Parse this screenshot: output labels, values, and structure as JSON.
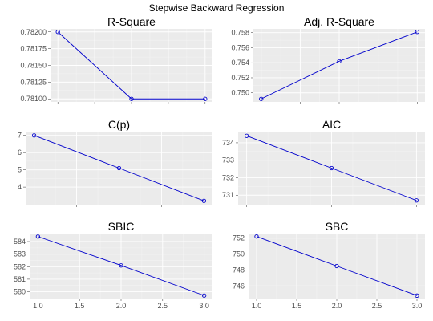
{
  "figure": {
    "title": "Stepwise Backward Regression",
    "line_color": "#0000cc",
    "panel_bg": "#ebebeb"
  },
  "chart_data": [
    {
      "type": "line",
      "title": "R-Square",
      "x": [
        1,
        2,
        3
      ],
      "values": [
        0.782,
        0.781,
        0.781
      ],
      "xlim": [
        0.9,
        3.1
      ],
      "ylim": [
        0.780955,
        0.782045
      ],
      "xticks": [
        1.0,
        1.5,
        2.0,
        2.5,
        3.0
      ],
      "yticks": [
        0.781,
        0.78125,
        0.7815,
        0.78175,
        0.782
      ],
      "ytick_labels": [
        "0.78100",
        "0.78125",
        "0.78150",
        "0.78175",
        "0.78200"
      ],
      "show_x_tick_labels": false,
      "grid": true
    },
    {
      "type": "line",
      "title": "Adj. R-Square",
      "x": [
        1,
        2,
        3
      ],
      "values": [
        0.7492,
        0.7542,
        0.7581
      ],
      "xlim": [
        0.9,
        3.1
      ],
      "ylim": [
        0.7488,
        0.7585
      ],
      "xticks": [
        1.0,
        1.5,
        2.0,
        2.5,
        3.0
      ],
      "yticks": [
        0.75,
        0.752,
        0.754,
        0.756,
        0.758
      ],
      "ytick_labels": [
        "0.750",
        "0.752",
        "0.754",
        "0.756",
        "0.758"
      ],
      "show_x_tick_labels": false,
      "grid": true
    },
    {
      "type": "line",
      "title": "C(p)",
      "x": [
        1,
        2,
        3
      ],
      "values": [
        7.0,
        5.1,
        3.2
      ],
      "xlim": [
        0.9,
        3.1
      ],
      "ylim": [
        2.98,
        7.22
      ],
      "xticks": [
        1.0,
        1.5,
        2.0,
        2.5,
        3.0
      ],
      "yticks": [
        4,
        5,
        6,
        7
      ],
      "ytick_labels": [
        "4",
        "5",
        "6",
        "7"
      ],
      "show_x_tick_labels": false,
      "grid": true
    },
    {
      "type": "line",
      "title": "AIC",
      "x": [
        1,
        2,
        3
      ],
      "values": [
        734.4,
        732.55,
        730.7
      ],
      "xlim": [
        0.9,
        3.1
      ],
      "ylim": [
        730.46,
        734.64
      ],
      "xticks": [
        1.0,
        1.5,
        2.0,
        2.5,
        3.0
      ],
      "yticks": [
        731,
        732,
        733,
        734
      ],
      "ytick_labels": [
        "731",
        "732",
        "733",
        "734"
      ],
      "show_x_tick_labels": false,
      "grid": true
    },
    {
      "type": "line",
      "title": "SBIC",
      "x": [
        1,
        2,
        3
      ],
      "values": [
        584.4,
        582.1,
        579.7
      ],
      "xlim": [
        0.9,
        3.1
      ],
      "ylim": [
        579.46,
        584.64
      ],
      "xticks": [
        1.0,
        1.5,
        2.0,
        2.5,
        3.0
      ],
      "yticks": [
        580,
        581,
        582,
        583,
        584
      ],
      "ytick_labels": [
        "580",
        "581",
        "582",
        "583",
        "584"
      ],
      "xtick_labels": [
        "1.0",
        "1.5",
        "2.0",
        "2.5",
        "3.0"
      ],
      "show_x_tick_labels": true,
      "grid": true
    },
    {
      "type": "line",
      "title": "SBC",
      "x": [
        1,
        2,
        3
      ],
      "values": [
        752.2,
        748.5,
        744.8
      ],
      "xlim": [
        0.9,
        3.1
      ],
      "ylim": [
        744.43,
        752.57
      ],
      "xticks": [
        1.0,
        1.5,
        2.0,
        2.5,
        3.0
      ],
      "yticks": [
        746,
        748,
        750,
        752
      ],
      "ytick_labels": [
        "746",
        "748",
        "750",
        "752"
      ],
      "xtick_labels": [
        "1.0",
        "1.5",
        "2.0",
        "2.5",
        "3.0"
      ],
      "show_x_tick_labels": true,
      "grid": true
    }
  ]
}
